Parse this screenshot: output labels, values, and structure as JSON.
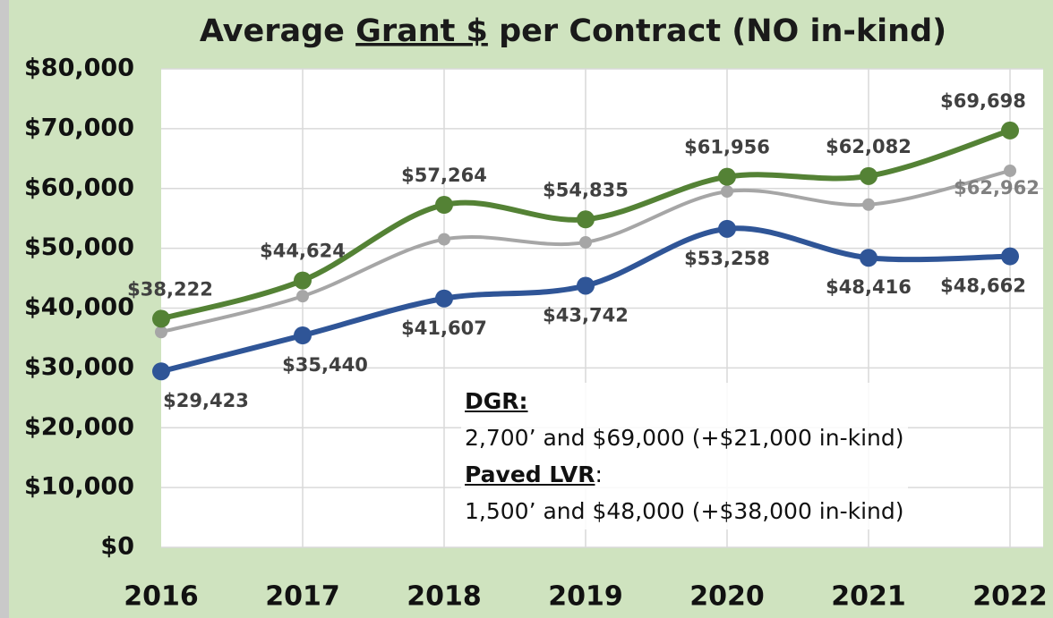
{
  "chart_data": {
    "type": "line",
    "title": [
      "Average ",
      "Grant $",
      " per Contract (NO in-kind)"
    ],
    "categories": [
      "2016",
      "2017",
      "2018",
      "2019",
      "2020",
      "2021",
      "2022"
    ],
    "series": [
      {
        "color": "#a6a6a6",
        "values": [
          36000,
          42000,
          51500,
          51000,
          59500,
          57300,
          62962
        ],
        "value_labels": [
          null,
          null,
          null,
          null,
          null,
          null,
          "$62,962"
        ]
      },
      {
        "color": "#548235",
        "values": [
          38222,
          44624,
          57264,
          54835,
          61956,
          62082,
          69698
        ],
        "value_labels": [
          "$38,222",
          "$44,624",
          "$57,264",
          "$54,835",
          "$61,956",
          "$62,082",
          "$69,698"
        ]
      },
      {
        "color": "#2f5597",
        "values": [
          29423,
          35440,
          41607,
          43742,
          53258,
          48416,
          48662
        ],
        "value_labels": [
          "$29,423",
          "$35,440",
          "$41,607",
          "$43,742",
          "$53,258",
          "$48,416",
          "$48,662"
        ]
      }
    ],
    "ylim": [
      0,
      80000
    ],
    "yticks": [
      {
        "value": 0,
        "label": "$0"
      },
      {
        "value": 10000,
        "label": "$10,000"
      },
      {
        "value": 20000,
        "label": "$20,000"
      },
      {
        "value": 30000,
        "label": "$30,000"
      },
      {
        "value": 40000,
        "label": "$40,000"
      },
      {
        "value": 50000,
        "label": "$50,000"
      },
      {
        "value": 60000,
        "label": "$60,000"
      },
      {
        "value": 70000,
        "label": "$70,000"
      },
      {
        "value": 80000,
        "label": "$80,000"
      }
    ],
    "grid": true,
    "annotation": [
      [
        "DGR:"
      ],
      [
        "2,700’ and $69,000 (+$21,000 in-kind)"
      ],
      [
        "Paved LVR",
        ":"
      ],
      [
        "1,500’ and $48,000 (+$38,000 in-kind)"
      ]
    ]
  }
}
